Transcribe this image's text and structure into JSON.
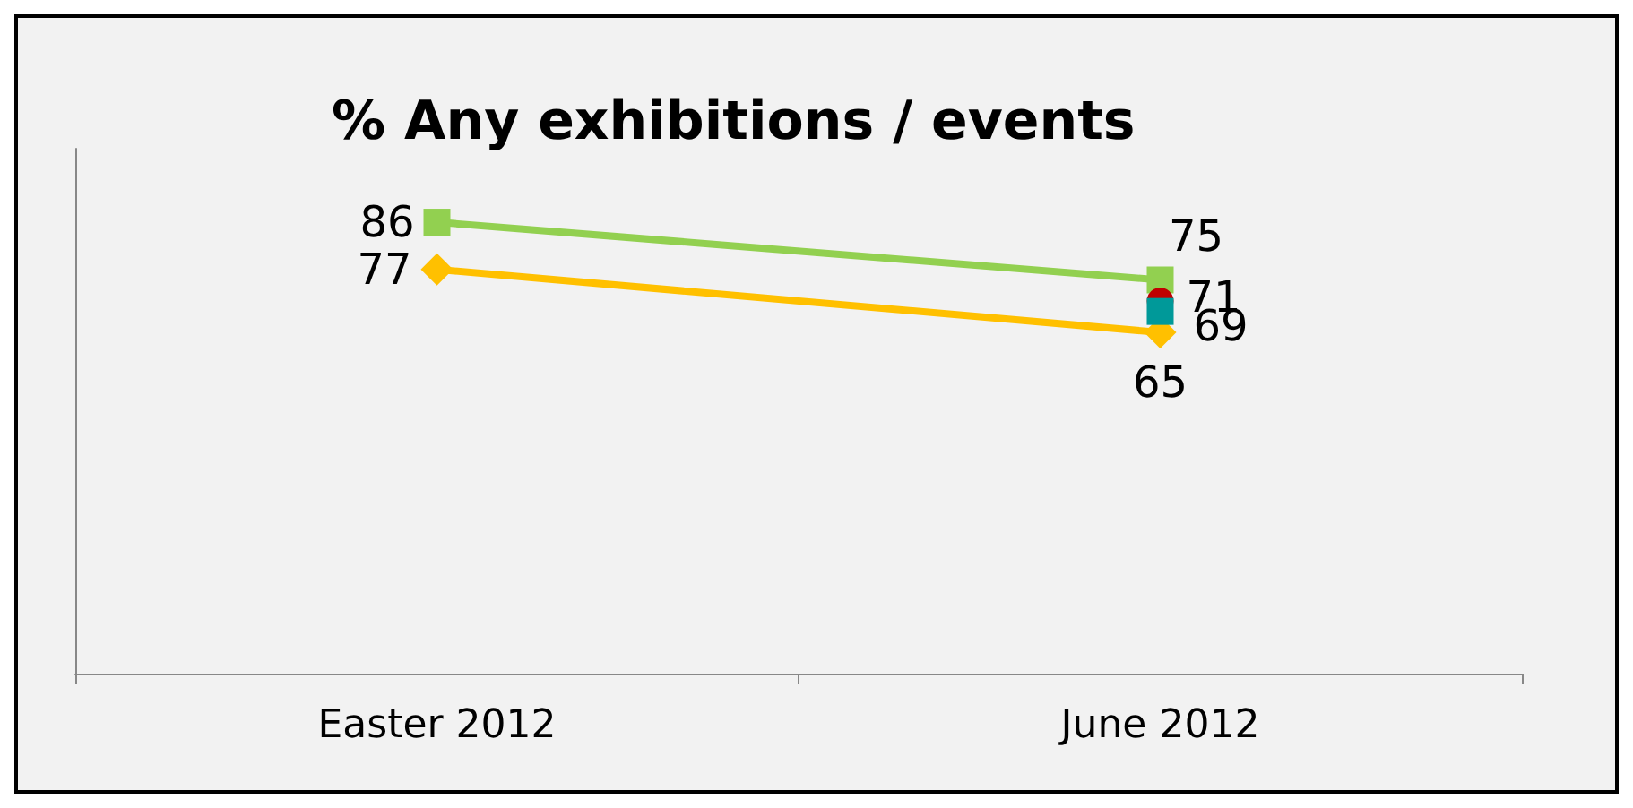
{
  "chart_data": {
    "type": "line",
    "title": "% Any exhibitions / events",
    "categories": [
      "Easter 2012",
      "June 2012"
    ],
    "series": [
      {
        "color": "#92d050",
        "values": [
          86,
          75
        ],
        "marker": "square"
      },
      {
        "color": "#ffc000",
        "values": [
          77,
          65
        ],
        "marker": "diamond"
      },
      {
        "type": "scatter",
        "color": "#c00000",
        "values": [
          null,
          71
        ],
        "marker": "circle"
      },
      {
        "type": "scatter",
        "color": "#009999",
        "values": [
          null,
          69
        ],
        "marker": "square"
      }
    ],
    "ylim": [
      0,
      100
    ],
    "tick_labels": "x",
    "data_labels": true,
    "grid": false
  }
}
